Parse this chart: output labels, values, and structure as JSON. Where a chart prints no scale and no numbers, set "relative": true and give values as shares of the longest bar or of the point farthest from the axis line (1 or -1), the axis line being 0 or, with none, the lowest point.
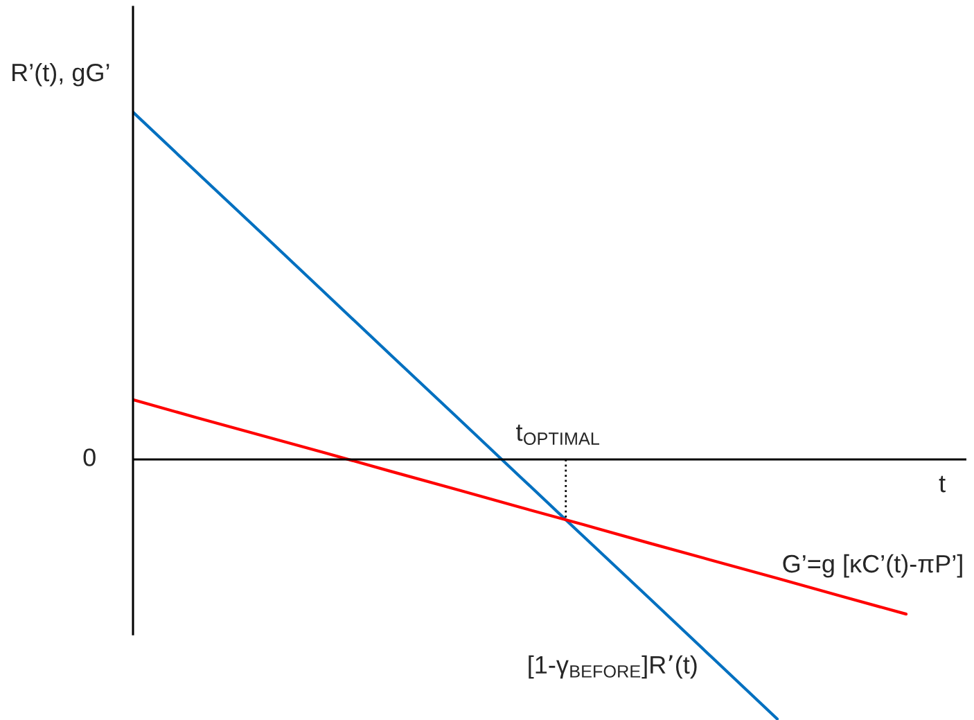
{
  "chart_data": {
    "type": "line",
    "relative": true,
    "ylabel": "R’(t), gG’",
    "xlabel": "t",
    "categories": [
      null,
      null,
      null,
      null,
      null,
      null,
      null,
      null,
      null,
      null,
      null,
      null,
      null
    ],
    "series": [
      {
        "name": "[1-γ$_{BEFORE}$]R’(t)",
        "color": "#0070c0",
        "values": [
          1,
          0.825,
          0.651,
          0.476,
          0.301,
          0.127,
          -0.048,
          -0.223,
          -0.397,
          -0.572,
          -0.747,
          null,
          null
        ]
      },
      {
        "name": "G’=g [κC’(t)-πP’]",
        "color": "#ff0000",
        "values": [
          0.172,
          0.12,
          0.069,
          0.018,
          -0.034,
          -0.085,
          -0.137,
          -0.188,
          -0.24,
          -0.291,
          -0.342,
          -0.394,
          -0.445
        ]
      }
    ],
    "annotations": [
      "0",
      "t$_{OPTIMAL}$"
    ],
    "marker": "none",
    "line_style": "solid"
  }
}
